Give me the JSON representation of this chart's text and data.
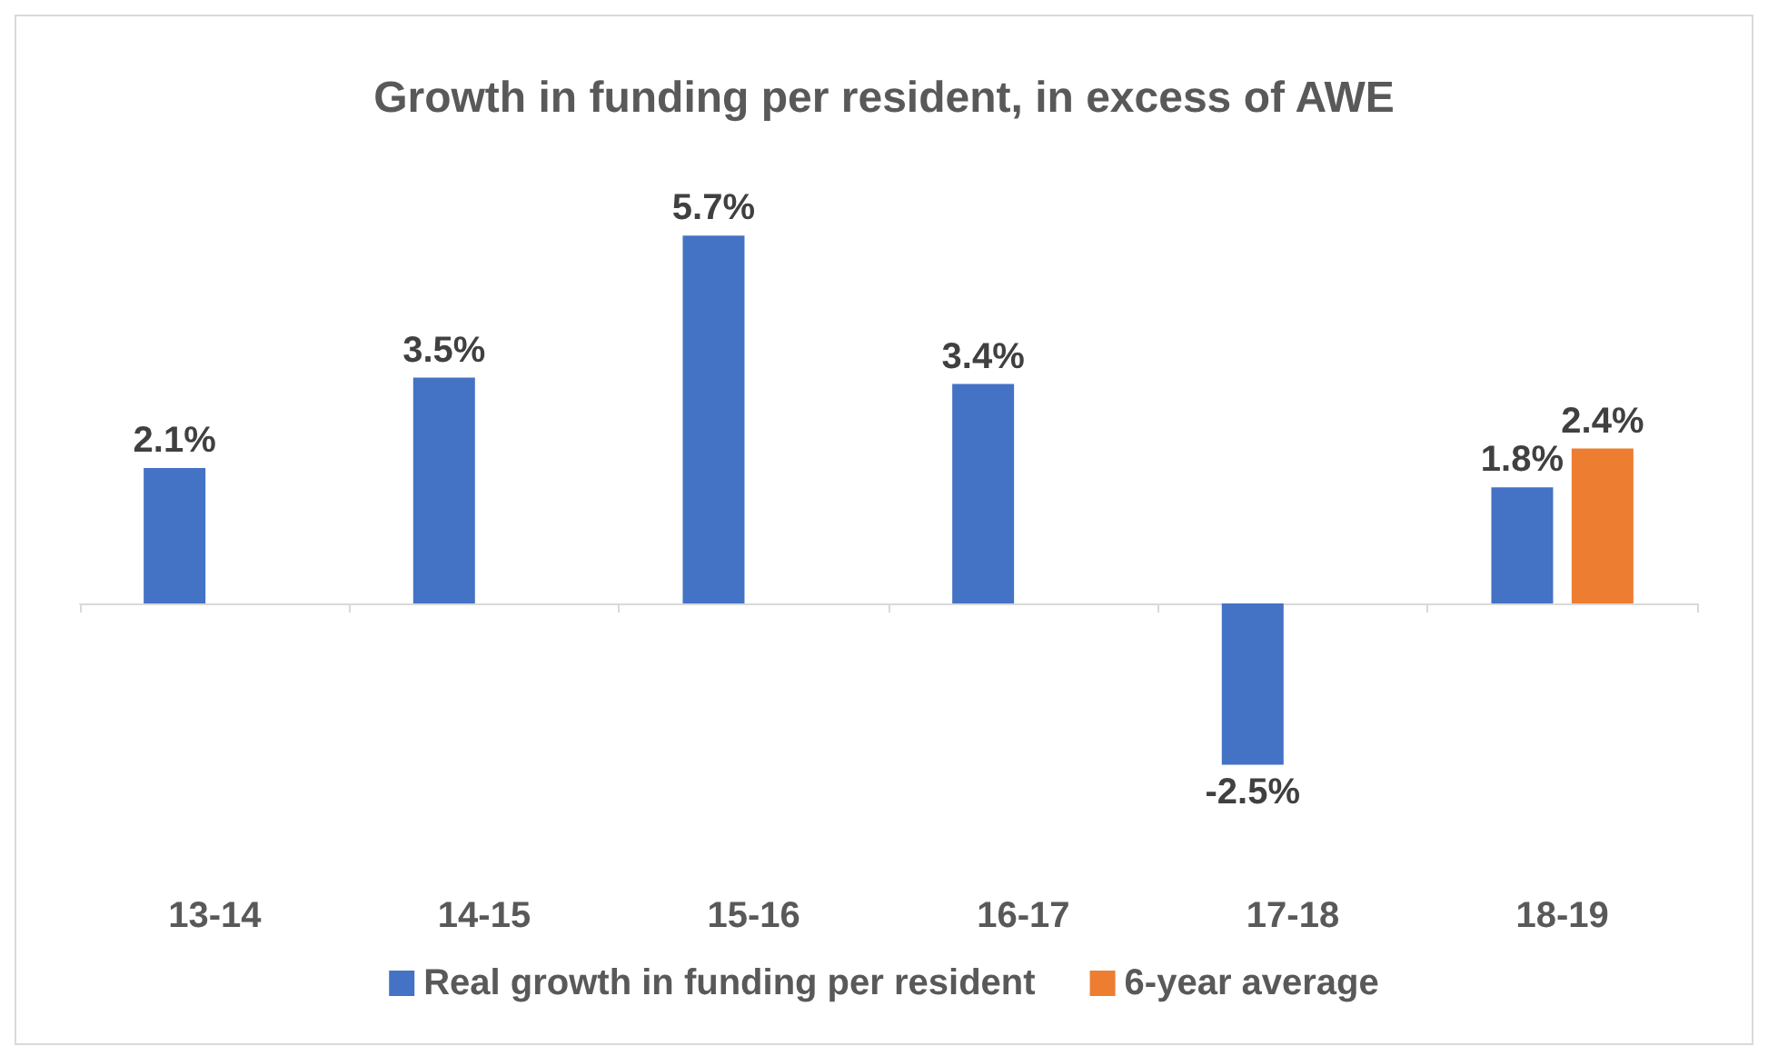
{
  "chart_data": {
    "type": "bar",
    "title": "Growth in funding per resident, in excess of AWE",
    "categories": [
      "13-14",
      "14-15",
      "15-16",
      "16-17",
      "17-18",
      "18-19"
    ],
    "series": [
      {
        "name": "Real growth in funding per resident",
        "color": "#4472c4",
        "values": [
          2.1,
          3.5,
          5.7,
          3.4,
          -2.5,
          1.8
        ],
        "value_labels": [
          "2.1%",
          "3.5%",
          "5.7%",
          "3.4%",
          "-2.5%",
          "1.8%"
        ]
      },
      {
        "name": "6-year average",
        "color": "#ed7d31",
        "values": [
          null,
          null,
          null,
          null,
          null,
          2.4
        ],
        "value_labels": [
          null,
          null,
          null,
          null,
          null,
          "2.4%"
        ]
      }
    ],
    "grid": false,
    "legend": "bottom"
  }
}
